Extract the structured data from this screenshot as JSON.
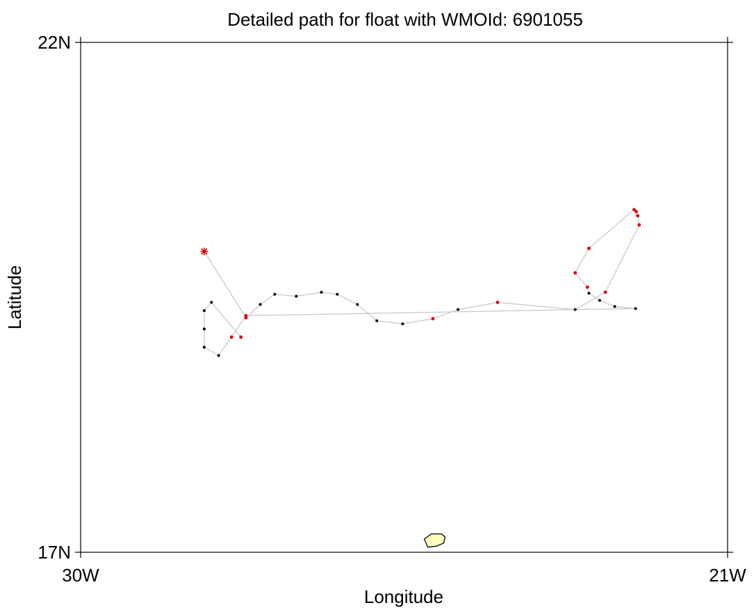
{
  "chart_data": {
    "type": "scatter",
    "title": "Detailed path for float with WMOId: 6901055",
    "xlabel": "Longitude",
    "ylabel": "Latitude",
    "xlim": [
      -30,
      -21
    ],
    "ylim": [
      17,
      22
    ],
    "x_ticks": [
      {
        "value": -30,
        "label": "30W"
      },
      {
        "value": -21,
        "label": "21W"
      }
    ],
    "y_ticks": [
      {
        "value": 17,
        "label": "17N"
      },
      {
        "value": 22,
        "label": "22N"
      }
    ],
    "grid": false,
    "colors": {
      "path": "#c8c8c8",
      "profile_black": "#000000",
      "profile_red": "#dd0000",
      "start_marker": "#dd0000",
      "land_fill": "#ffffc0",
      "land_stroke": "#000000",
      "frame": "#000000"
    },
    "start_marker": {
      "lon": -28.28,
      "lat": 19.95,
      "symbol": "asterisk"
    },
    "path": [
      {
        "lon": -28.28,
        "lat": 19.95,
        "color": "start"
      },
      {
        "lon": -27.7,
        "lat": 19.3,
        "color": "red"
      },
      {
        "lon": -27.5,
        "lat": 19.43,
        "color": "black"
      },
      {
        "lon": -27.3,
        "lat": 19.53,
        "color": "black"
      },
      {
        "lon": -27.0,
        "lat": 19.51,
        "color": "black"
      },
      {
        "lon": -26.65,
        "lat": 19.55,
        "color": "black"
      },
      {
        "lon": -26.43,
        "lat": 19.53,
        "color": "black"
      },
      {
        "lon": -26.15,
        "lat": 19.43,
        "color": "black"
      },
      {
        "lon": -25.88,
        "lat": 19.27,
        "color": "black"
      },
      {
        "lon": -25.52,
        "lat": 19.24,
        "color": "black"
      },
      {
        "lon": -25.1,
        "lat": 19.29,
        "color": "red"
      },
      {
        "lon": -24.75,
        "lat": 19.38,
        "color": "black"
      },
      {
        "lon": -24.2,
        "lat": 19.45,
        "color": "red"
      },
      {
        "lon": -23.12,
        "lat": 19.38,
        "color": "black"
      },
      {
        "lon": -22.7,
        "lat": 19.55,
        "color": "red"
      },
      {
        "lon": -22.23,
        "lat": 20.21,
        "color": "red"
      },
      {
        "lon": -22.25,
        "lat": 20.3,
        "color": "red"
      },
      {
        "lon": -22.27,
        "lat": 20.34,
        "color": "red"
      },
      {
        "lon": -22.3,
        "lat": 20.36,
        "color": "red"
      },
      {
        "lon": -22.93,
        "lat": 19.98,
        "color": "red"
      },
      {
        "lon": -23.12,
        "lat": 19.74,
        "color": "red"
      },
      {
        "lon": -22.95,
        "lat": 19.6,
        "color": "red"
      },
      {
        "lon": -22.93,
        "lat": 19.54,
        "color": "black"
      },
      {
        "lon": -22.78,
        "lat": 19.47,
        "color": "black"
      },
      {
        "lon": -22.57,
        "lat": 19.41,
        "color": "black"
      },
      {
        "lon": -22.28,
        "lat": 19.39,
        "color": "black"
      },
      {
        "lon": -27.7,
        "lat": 19.32,
        "color": "red"
      },
      {
        "lon": -27.9,
        "lat": 19.11,
        "color": "red"
      },
      {
        "lon": -28.08,
        "lat": 18.93,
        "color": "black"
      },
      {
        "lon": -28.28,
        "lat": 19.01,
        "color": "black"
      },
      {
        "lon": -28.28,
        "lat": 19.19,
        "color": "black"
      },
      {
        "lon": -28.28,
        "lat": 19.37,
        "color": "black"
      },
      {
        "lon": -28.18,
        "lat": 19.45,
        "color": "black"
      },
      {
        "lon": -27.77,
        "lat": 19.11,
        "color": "red"
      }
    ],
    "land_outline": [
      [
        -25.22,
        17.13
      ],
      [
        -25.12,
        17.18
      ],
      [
        -24.98,
        17.18
      ],
      [
        -24.93,
        17.15
      ],
      [
        -24.95,
        17.09
      ],
      [
        -25.05,
        17.06
      ],
      [
        -25.17,
        17.05
      ],
      [
        -25.22,
        17.13
      ]
    ]
  }
}
